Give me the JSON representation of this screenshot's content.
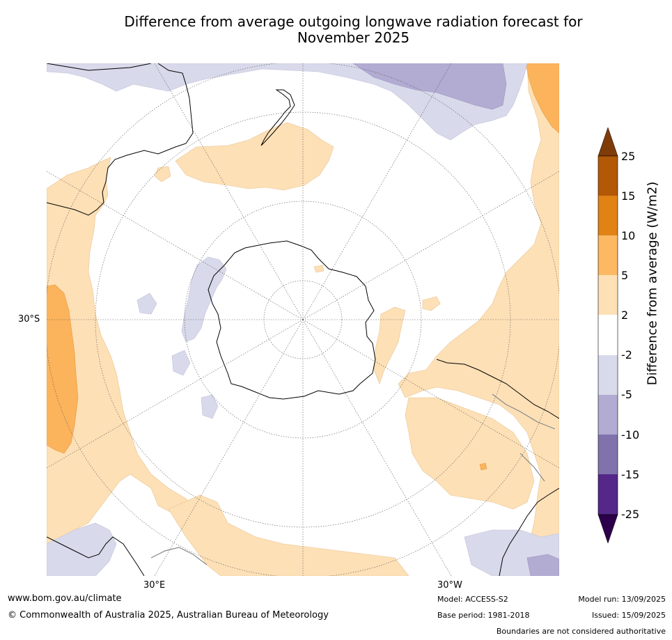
{
  "title": {
    "line1": "Difference from average outgoing longwave radiation forecast for",
    "line2": "November 2025"
  },
  "map": {
    "projection": "south polar stereographic",
    "labels": {
      "lat": "30°S",
      "lon_east": "30°E",
      "lon_west": "30°W"
    },
    "colors": {
      "ocean_base": "#ffffff",
      "pos_2_5": "#fde0b6",
      "pos_5_10": "#fbb35c",
      "neg_2_5": "#d8d9ea",
      "neg_5_10": "#b2abd2",
      "coastline": "#000000",
      "boundary": "#888888",
      "graticule": "#555555"
    }
  },
  "colorbar": {
    "label": "Difference from average (W/m2)",
    "ticks": [
      "25",
      "15",
      "10",
      "5",
      "2",
      "-2",
      "-5",
      "-10",
      "-15",
      "-25"
    ],
    "colors": [
      "#7f3b08",
      "#b35806",
      "#e08214",
      "#fdb863",
      "#fee0b6",
      "#ffffff",
      "#d8daeb",
      "#b2abd2",
      "#8073ac",
      "#542788",
      "#2d004b"
    ]
  },
  "footer": {
    "website": "www.bom.gov.au/climate",
    "copyright": "© Commonwealth of Australia 2025, Australian Bureau of Meteorology",
    "model": "Model: ACCESS-S2",
    "base_period": "Base period: 1981-2018",
    "model_run": "Model run: 13/09/2025",
    "issued": "Issued: 15/09/2025",
    "disclaimer": "Boundaries are not considered authoritative"
  }
}
